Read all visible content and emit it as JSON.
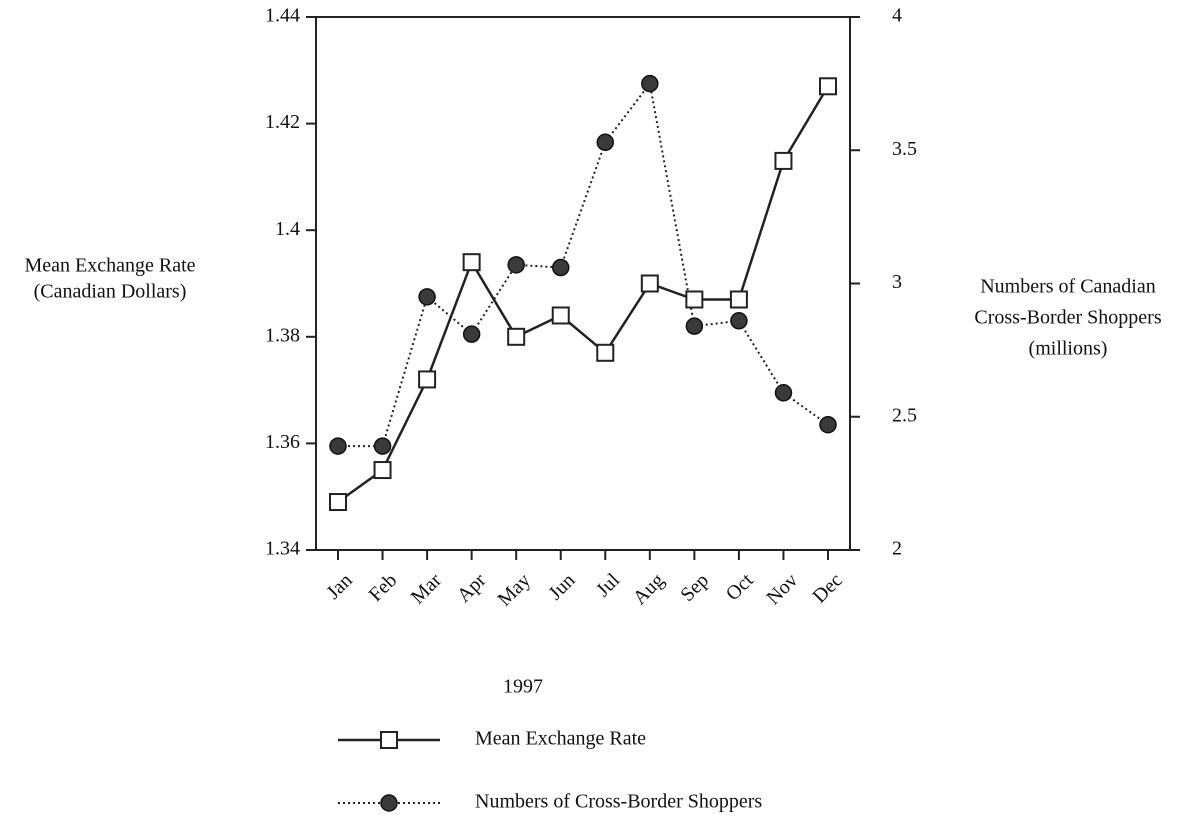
{
  "chart_data": {
    "type": "line",
    "ylabel": [
      "Mean Exchange Rate",
      "(Canadian Dollars)"
    ],
    "y2label": [
      "Numbers of Canadian",
      "Cross-Border Shoppers",
      "(millions)"
    ],
    "xlabel": "1997",
    "categories": [
      "Jan",
      "Feb",
      "Mar",
      "Apr",
      "May",
      "Jun",
      "Jul",
      "Aug",
      "Sep",
      "Oct",
      "Nov",
      "Dec"
    ],
    "series": [
      {
        "name": "Mean Exchange Rate",
        "color": "#222222",
        "line_style": "solid",
        "marker": "square",
        "values": [
          1.349,
          1.355,
          1.372,
          1.394,
          1.38,
          1.384,
          1.377,
          1.39,
          1.387,
          1.387,
          1.413,
          1.427
        ]
      },
      {
        "name": "Numbers of Cross-Border Shoppers",
        "color": "#222222",
        "line_style": "dotted",
        "marker": "circle",
        "axis": "y2",
        "values": [
          2.39,
          2.39,
          2.95,
          2.81,
          3.07,
          3.06,
          3.53,
          3.75,
          2.84,
          2.86,
          2.59,
          2.47
        ]
      }
    ],
    "ylim": [
      1.34,
      1.44
    ],
    "yticks": [
      1.34,
      1.36,
      1.38,
      1.4,
      1.42,
      1.44
    ],
    "y2lim": [
      2,
      4
    ],
    "y2ticks": [
      2,
      2.5,
      3,
      3.5,
      4
    ]
  }
}
